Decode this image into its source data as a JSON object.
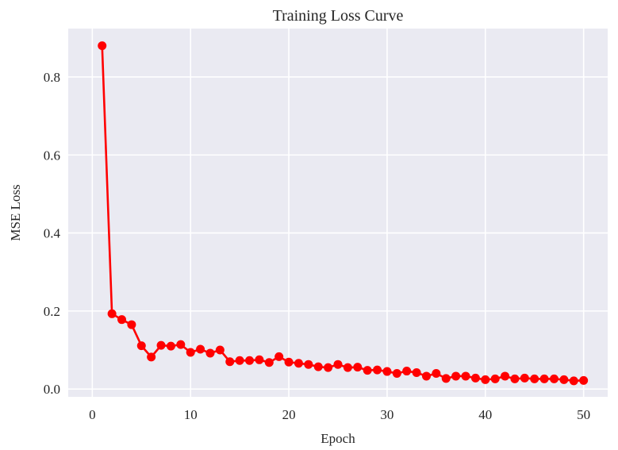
{
  "chart_data": {
    "type": "line",
    "title": "Training Loss Curve",
    "xlabel": "Epoch",
    "ylabel": "MSE Loss",
    "xlim": [
      -2.45,
      52.45
    ],
    "ylim": [
      -0.02,
      0.924
    ],
    "xticks": [
      0,
      10,
      20,
      30,
      40,
      50
    ],
    "yticks": [
      0.0,
      0.2,
      0.4,
      0.6,
      0.8
    ],
    "ytick_labels": [
      "0.0",
      "0.2",
      "0.4",
      "0.6",
      "0.8"
    ],
    "grid": true,
    "series": [
      {
        "color": "#ff0000",
        "marker": "circle",
        "x": [
          1,
          2,
          3,
          4,
          5,
          6,
          7,
          8,
          9,
          10,
          11,
          12,
          13,
          14,
          15,
          16,
          17,
          18,
          19,
          20,
          21,
          22,
          23,
          24,
          25,
          26,
          27,
          28,
          29,
          30,
          31,
          32,
          33,
          34,
          35,
          36,
          37,
          38,
          39,
          40,
          41,
          42,
          43,
          44,
          45,
          46,
          47,
          48,
          49,
          50
        ],
        "y": [
          0.88,
          0.193,
          0.178,
          0.165,
          0.111,
          0.082,
          0.112,
          0.11,
          0.114,
          0.094,
          0.102,
          0.092,
          0.1,
          0.07,
          0.073,
          0.073,
          0.075,
          0.068,
          0.083,
          0.069,
          0.066,
          0.063,
          0.057,
          0.055,
          0.063,
          0.055,
          0.056,
          0.048,
          0.049,
          0.045,
          0.04,
          0.046,
          0.042,
          0.033,
          0.04,
          0.027,
          0.033,
          0.033,
          0.028,
          0.024,
          0.026,
          0.033,
          0.026,
          0.028,
          0.026,
          0.026,
          0.026,
          0.024,
          0.021,
          0.022
        ]
      }
    ]
  },
  "colors": {
    "plot_background": "#eaeaf2",
    "grid": "#ffffff",
    "text": "#262626"
  }
}
